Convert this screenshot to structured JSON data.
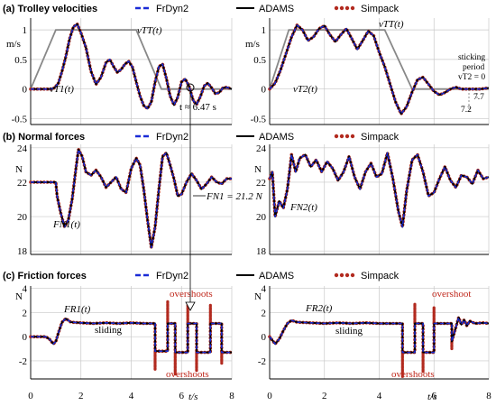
{
  "chart_data": {
    "type": "line",
    "legend_labels": [
      "FrDyn2",
      "ADAMS",
      "Simpack"
    ],
    "colors": {
      "frdyn": "#1a2bd6",
      "adams": "#000000",
      "simpack": "#b22a1f",
      "drive": "#888888",
      "grid": "#c8c8c8"
    },
    "x_ticks": [
      "0",
      "2",
      "4",
      "6",
      "8"
    ],
    "xlabel": "t/s",
    "xlim": [
      0,
      8
    ],
    "rows": [
      {
        "title": "(a) Trolley velocities",
        "unit": "m/s",
        "ylim": [
          -0.6,
          1.2
        ],
        "y_ticks": [
          {
            "v": -0.5,
            "label": "-0.5"
          },
          {
            "v": 0,
            "label": "0"
          },
          {
            "v": 0.5,
            "label": "0.5"
          },
          {
            "v": 1,
            "label": "1"
          }
        ],
        "panels": [
          {
            "drive_label": "vTT(t)",
            "response_label": "vT1(t)",
            "drive": {
              "x": [
                0,
                1.0,
                4.2,
                5.2,
                8
              ],
              "y": [
                0,
                1.0,
                1.0,
                0,
                0
              ]
            },
            "response": {
              "x": [
                0,
                0.8,
                0.95,
                1.1,
                1.25,
                1.4,
                1.55,
                1.7,
                1.85,
                2.0,
                2.2,
                2.4,
                2.6,
                2.8,
                3.0,
                3.15,
                3.3,
                3.45,
                3.6,
                3.75,
                3.9,
                4.05,
                4.2,
                4.35,
                4.5,
                4.65,
                4.8,
                4.95,
                5.1,
                5.25,
                5.4,
                5.55,
                5.7,
                5.85,
                6.0,
                6.15,
                6.3,
                6.47,
                6.6,
                6.75,
                6.9,
                7.05,
                7.2,
                7.35,
                7.5,
                7.65,
                7.8,
                8.0
              ],
              "y": [
                0,
                0,
                0.02,
                0.1,
                0.3,
                0.55,
                0.85,
                1.05,
                1.1,
                0.95,
                0.7,
                0.3,
                0.08,
                0.2,
                0.45,
                0.5,
                0.38,
                0.28,
                0.33,
                0.42,
                0.47,
                0.37,
                0.12,
                -0.12,
                -0.28,
                -0.33,
                -0.22,
                0.12,
                0.38,
                0.42,
                0.18,
                -0.12,
                -0.27,
                -0.14,
                0.12,
                0.17,
                0.05,
                -0.2,
                -0.26,
                -0.13,
                0.05,
                0.1,
                0.02,
                -0.08,
                -0.06,
                0.02,
                0.03,
                0.0
              ]
            }
          },
          {
            "drive_label": "vTT(t)",
            "response_label": "vT2(t)",
            "drive": {
              "x": [
                0,
                0.7,
                4.2,
                5.2,
                8
              ],
              "y": [
                0,
                1.0,
                1.0,
                0,
                0
              ]
            },
            "response": {
              "x": [
                0,
                0.2,
                0.4,
                0.6,
                0.8,
                1.0,
                1.2,
                1.4,
                1.6,
                1.8,
                2.0,
                2.2,
                2.4,
                2.6,
                2.8,
                3.0,
                3.2,
                3.4,
                3.6,
                3.8,
                4.0,
                4.2,
                4.4,
                4.6,
                4.8,
                5.0,
                5.2,
                5.4,
                5.6,
                5.8,
                6.0,
                6.2,
                6.4,
                6.6,
                6.8,
                7.0,
                7.2,
                7.4,
                7.7,
                8.0
              ],
              "y": [
                0,
                0.1,
                0.32,
                0.6,
                0.88,
                1.08,
                1.0,
                0.82,
                0.88,
                1.02,
                1.07,
                0.92,
                0.8,
                0.92,
                1.02,
                0.85,
                0.67,
                0.82,
                0.98,
                0.9,
                0.62,
                0.38,
                0.08,
                -0.22,
                -0.42,
                -0.3,
                -0.05,
                0.16,
                0.2,
                0.08,
                -0.04,
                -0.1,
                -0.06,
                0.0,
                0.03,
                0.0,
                0.0,
                0.0,
                0.0,
                0.02
              ]
            }
          }
        ]
      },
      {
        "title": "(b) Normal forces",
        "unit": "N",
        "ylim": [
          17.8,
          24.2
        ],
        "y_ticks": [
          {
            "v": 18,
            "label": "18"
          },
          {
            "v": 20,
            "label": "20"
          },
          {
            "v": 22,
            "label": "22"
          },
          {
            "v": 24,
            "label": "24"
          }
        ],
        "panels": [
          {
            "response_label": "FN1(t)",
            "response": {
              "x": [
                0,
                1.0,
                1.05,
                1.2,
                1.35,
                1.5,
                1.65,
                1.8,
                1.9,
                2.05,
                2.2,
                2.4,
                2.6,
                2.8,
                3.0,
                3.2,
                3.4,
                3.6,
                3.8,
                4.0,
                4.2,
                4.35,
                4.5,
                4.65,
                4.8,
                4.95,
                5.1,
                5.25,
                5.4,
                5.55,
                5.7,
                5.85,
                6.0,
                6.2,
                6.4,
                6.6,
                6.8,
                7.0,
                7.2,
                7.4,
                7.6,
                7.8,
                8.0
              ],
              "y": [
                22,
                22,
                21.2,
                20.2,
                19.4,
                19.8,
                21.0,
                22.8,
                23.9,
                23.5,
                22.6,
                22.4,
                22.7,
                22.3,
                21.7,
                22.0,
                22.3,
                21.6,
                21.4,
                22.8,
                23.4,
                23.0,
                21.6,
                19.8,
                18.2,
                19.4,
                21.6,
                23.5,
                23.7,
                23.0,
                22.2,
                21.2,
                21.3,
                22.0,
                22.5,
                22.1,
                21.6,
                21.9,
                22.3,
                22.0,
                21.9,
                22.2,
                22.2
              ]
            }
          },
          {
            "response_label": "FN2(t)",
            "response": {
              "x": [
                0,
                0.1,
                0.2,
                0.35,
                0.5,
                0.65,
                0.8,
                0.95,
                1.1,
                1.3,
                1.5,
                1.7,
                1.9,
                2.1,
                2.3,
                2.5,
                2.7,
                2.9,
                3.1,
                3.3,
                3.5,
                3.7,
                3.9,
                4.1,
                4.3,
                4.5,
                4.7,
                4.85,
                5.0,
                5.2,
                5.4,
                5.6,
                5.8,
                6.0,
                6.2,
                6.4,
                6.6,
                6.8,
                7.0,
                7.2,
                7.4,
                7.6,
                7.8,
                8.0
              ],
              "y": [
                22.2,
                22.6,
                20.0,
                20.9,
                20.5,
                21.6,
                23.6,
                22.6,
                23.4,
                23.6,
                22.9,
                23.3,
                22.6,
                23.2,
                22.8,
                22.1,
                22.6,
                23.5,
                22.3,
                21.6,
                22.6,
                23.1,
                22.3,
                22.5,
                23.7,
                22.2,
                20.3,
                19.4,
                21.5,
                23.3,
                23.6,
                22.6,
                21.2,
                21.4,
                22.2,
                22.9,
                22.1,
                21.7,
                22.4,
                22.3,
                21.9,
                22.7,
                22.2,
                22.3
              ]
            }
          }
        ]
      },
      {
        "title": "(c) Friction forces",
        "unit": "N",
        "ylim": [
          -3.5,
          4.2
        ],
        "y_ticks": [
          {
            "v": -2,
            "label": "-2"
          },
          {
            "v": 0,
            "label": "0"
          },
          {
            "v": 2,
            "label": "2"
          },
          {
            "v": 4,
            "label": "4"
          }
        ],
        "panels": [
          {
            "response_label": "FR1(t)",
            "sliding_label": "sliding",
            "response": {
              "x": [
                0,
                0.6,
                0.75,
                0.9,
                1.0,
                1.1,
                1.25,
                1.4,
                1.6,
                2.0,
                2.5,
                3.0,
                3.5,
                4.0,
                4.5,
                4.8,
                4.95,
                4.95,
                5.2,
                5.45,
                5.45,
                5.75,
                5.75,
                6.0,
                6.25,
                6.25,
                6.6,
                6.6,
                6.9,
                7.15,
                7.15,
                7.6,
                7.6,
                8.0
              ],
              "y": [
                0,
                0,
                -0.2,
                -0.6,
                -0.4,
                0.3,
                1.2,
                1.5,
                1.2,
                1.15,
                1.1,
                1.15,
                1.1,
                1.15,
                1.1,
                1.1,
                1.1,
                -1.2,
                -1.2,
                -1.2,
                1.1,
                1.1,
                -1.3,
                -1.3,
                -1.3,
                1.1,
                1.1,
                -1.3,
                -1.3,
                -1.3,
                1.1,
                1.1,
                -1.3,
                -1.3
              ]
            },
            "spikes": [
              {
                "x": 4.95,
                "y0": -1.2,
                "y1": -2.7
              },
              {
                "x": 5.45,
                "y0": 1.1,
                "y1": 2.9
              },
              {
                "x": 5.75,
                "y0": -1.3,
                "y1": -3.1
              },
              {
                "x": 6.25,
                "y0": 1.1,
                "y1": 2.6
              },
              {
                "x": 6.6,
                "y0": -1.3,
                "y1": -2.8
              },
              {
                "x": 7.15,
                "y0": 1.1,
                "y1": 2.6
              },
              {
                "x": 7.6,
                "y0": -1.3,
                "y1": -2.2
              }
            ]
          },
          {
            "response_label": "FR2(t)",
            "sliding_label": "sliding",
            "response": {
              "x": [
                0,
                0.2,
                0.35,
                0.5,
                0.65,
                0.8,
                1.0,
                1.5,
                2.0,
                2.5,
                3.0,
                3.5,
                4.0,
                4.5,
                4.85,
                4.85,
                5.3,
                5.3,
                5.6,
                5.6,
                6.0,
                6.0,
                6.65,
                6.65,
                6.9,
                7.0,
                7.1,
                7.2,
                7.3,
                7.5,
                7.8,
                8.0
              ],
              "y": [
                0,
                -0.6,
                -0.2,
                0.5,
                1.1,
                1.35,
                1.2,
                1.15,
                1.1,
                1.15,
                1.1,
                1.15,
                1.1,
                1.1,
                1.1,
                -1.3,
                -1.3,
                1.1,
                1.1,
                -1.3,
                -1.3,
                1.1,
                1.1,
                -0.4,
                1.6,
                1.0,
                1.4,
                0.9,
                1.3,
                1.1,
                1.15,
                1.1
              ]
            },
            "spikes": [
              {
                "x": 4.85,
                "y0": -1.3,
                "y1": -3.3
              },
              {
                "x": 5.3,
                "y0": 1.1,
                "y1": 2.7
              },
              {
                "x": 5.6,
                "y0": -1.3,
                "y1": -2.9
              },
              {
                "x": 6.0,
                "y0": 1.1,
                "y1": 2.5
              },
              {
                "x": 6.65,
                "y0": -0.4,
                "y1": -1.0
              }
            ]
          }
        ]
      }
    ],
    "annotations": {
      "t_marker": "t ≈ 6.47 s",
      "fn1_value": "FN1 = 21.2 N",
      "sticking_1": "sticking",
      "sticking_2": "period",
      "sticking_3": "vT2 = 0",
      "tick_72": "7.2",
      "tick_77": "7.7",
      "overshoots": "overshoots",
      "overshoot": "overshoot"
    }
  }
}
